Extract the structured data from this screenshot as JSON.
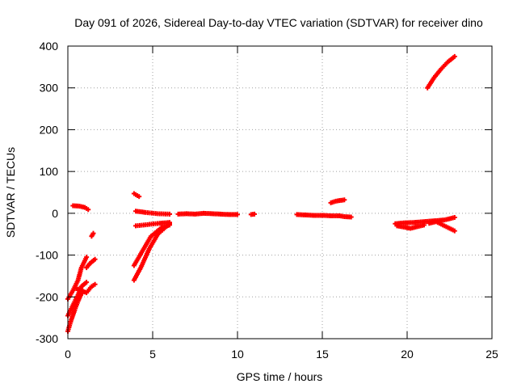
{
  "chart_data": {
    "type": "scatter",
    "title": "Day 091 of 2026, Sidereal Day-to-day VTEC variation (SDTVAR) for receiver dino",
    "xlabel": "GPS time / hours",
    "ylabel": "SDTVAR / TECUs",
    "xlim": [
      0,
      25
    ],
    "ylim": [
      -300,
      400
    ],
    "xticks": [
      0,
      5,
      10,
      15,
      20,
      25
    ],
    "yticks": [
      -300,
      -200,
      -100,
      0,
      100,
      200,
      300,
      400
    ],
    "grid": true,
    "legend": "none",
    "marker": "cross",
    "series_color": "#ff0000",
    "segments": [
      {
        "points": [
          [
            0.3,
            18
          ],
          [
            0.7,
            17
          ],
          [
            1.0,
            14
          ],
          [
            1.2,
            9
          ]
        ]
      },
      {
        "points": [
          [
            0.0,
            -205
          ],
          [
            0.3,
            -185
          ],
          [
            0.6,
            -160
          ],
          [
            0.8,
            -130
          ],
          [
            1.1,
            -105
          ]
        ]
      },
      {
        "points": [
          [
            0.0,
            -245
          ],
          [
            0.3,
            -220
          ],
          [
            0.6,
            -195
          ],
          [
            0.8,
            -175
          ],
          [
            1.1,
            -165
          ]
        ]
      },
      {
        "points": [
          [
            0.0,
            -282
          ],
          [
            0.2,
            -255
          ],
          [
            0.4,
            -232
          ],
          [
            0.6,
            -210
          ],
          [
            0.8,
            -192
          ]
        ]
      },
      {
        "points": [
          [
            0.5,
            -180
          ],
          [
            0.8,
            -185
          ],
          [
            1.1,
            -190
          ],
          [
            1.4,
            -175
          ],
          [
            1.6,
            -170
          ]
        ]
      },
      {
        "points": [
          [
            1.1,
            -130
          ],
          [
            1.3,
            -120
          ],
          [
            1.6,
            -110
          ]
        ]
      },
      {
        "points": [
          [
            1.4,
            -55
          ],
          [
            1.5,
            -48
          ]
        ]
      },
      {
        "points": [
          [
            3.9,
            47
          ],
          [
            4.2,
            40
          ]
        ]
      },
      {
        "points": [
          [
            3.9,
            -160
          ],
          [
            4.3,
            -130
          ],
          [
            4.8,
            -85
          ],
          [
            5.3,
            -50
          ],
          [
            6.0,
            -25
          ]
        ]
      },
      {
        "points": [
          [
            3.9,
            -125
          ],
          [
            4.4,
            -90
          ],
          [
            4.9,
            -55
          ],
          [
            5.5,
            -35
          ],
          [
            6.0,
            -28
          ]
        ]
      },
      {
        "points": [
          [
            4.0,
            -30
          ],
          [
            4.7,
            -27
          ],
          [
            5.4,
            -24
          ],
          [
            6.0,
            -22
          ]
        ]
      },
      {
        "points": [
          [
            4.0,
            5
          ],
          [
            4.6,
            2
          ],
          [
            5.3,
            -1
          ],
          [
            6.0,
            -2
          ]
        ]
      },
      {
        "points": [
          [
            6.5,
            -2
          ],
          [
            7.0,
            -1
          ],
          [
            7.5,
            -2
          ],
          [
            8.0,
            0
          ],
          [
            8.5,
            -1
          ],
          [
            9.0,
            -2
          ],
          [
            9.5,
            -3
          ],
          [
            10.0,
            -3
          ]
        ]
      },
      {
        "points": [
          [
            10.8,
            -3
          ],
          [
            11.0,
            -2
          ]
        ]
      },
      {
        "points": [
          [
            13.5,
            -3
          ],
          [
            14.0,
            -4
          ],
          [
            14.5,
            -5
          ],
          [
            15.0,
            -5
          ],
          [
            15.5,
            -6
          ],
          [
            16.0,
            -6
          ],
          [
            16.3,
            -8
          ],
          [
            16.7,
            -9
          ]
        ]
      },
      {
        "points": [
          [
            15.5,
            25
          ],
          [
            15.8,
            29
          ],
          [
            16.1,
            31
          ],
          [
            16.3,
            32
          ]
        ]
      },
      {
        "points": [
          [
            19.3,
            -25
          ],
          [
            19.8,
            -23
          ],
          [
            20.4,
            -22
          ],
          [
            21.0,
            -20
          ],
          [
            21.6,
            -18
          ],
          [
            22.2,
            -16
          ],
          [
            22.8,
            -10
          ]
        ]
      },
      {
        "points": [
          [
            19.4,
            -30
          ],
          [
            19.8,
            -33
          ],
          [
            20.2,
            -36
          ],
          [
            20.6,
            -32
          ],
          [
            21.0,
            -28
          ]
        ]
      },
      {
        "points": [
          [
            21.3,
            -24
          ],
          [
            21.7,
            -20
          ],
          [
            22.1,
            -28
          ],
          [
            22.5,
            -36
          ],
          [
            22.8,
            -42
          ]
        ]
      },
      {
        "points": [
          [
            21.2,
            300
          ],
          [
            21.6,
            325
          ],
          [
            22.0,
            345
          ],
          [
            22.4,
            362
          ],
          [
            22.8,
            375
          ]
        ]
      }
    ]
  }
}
